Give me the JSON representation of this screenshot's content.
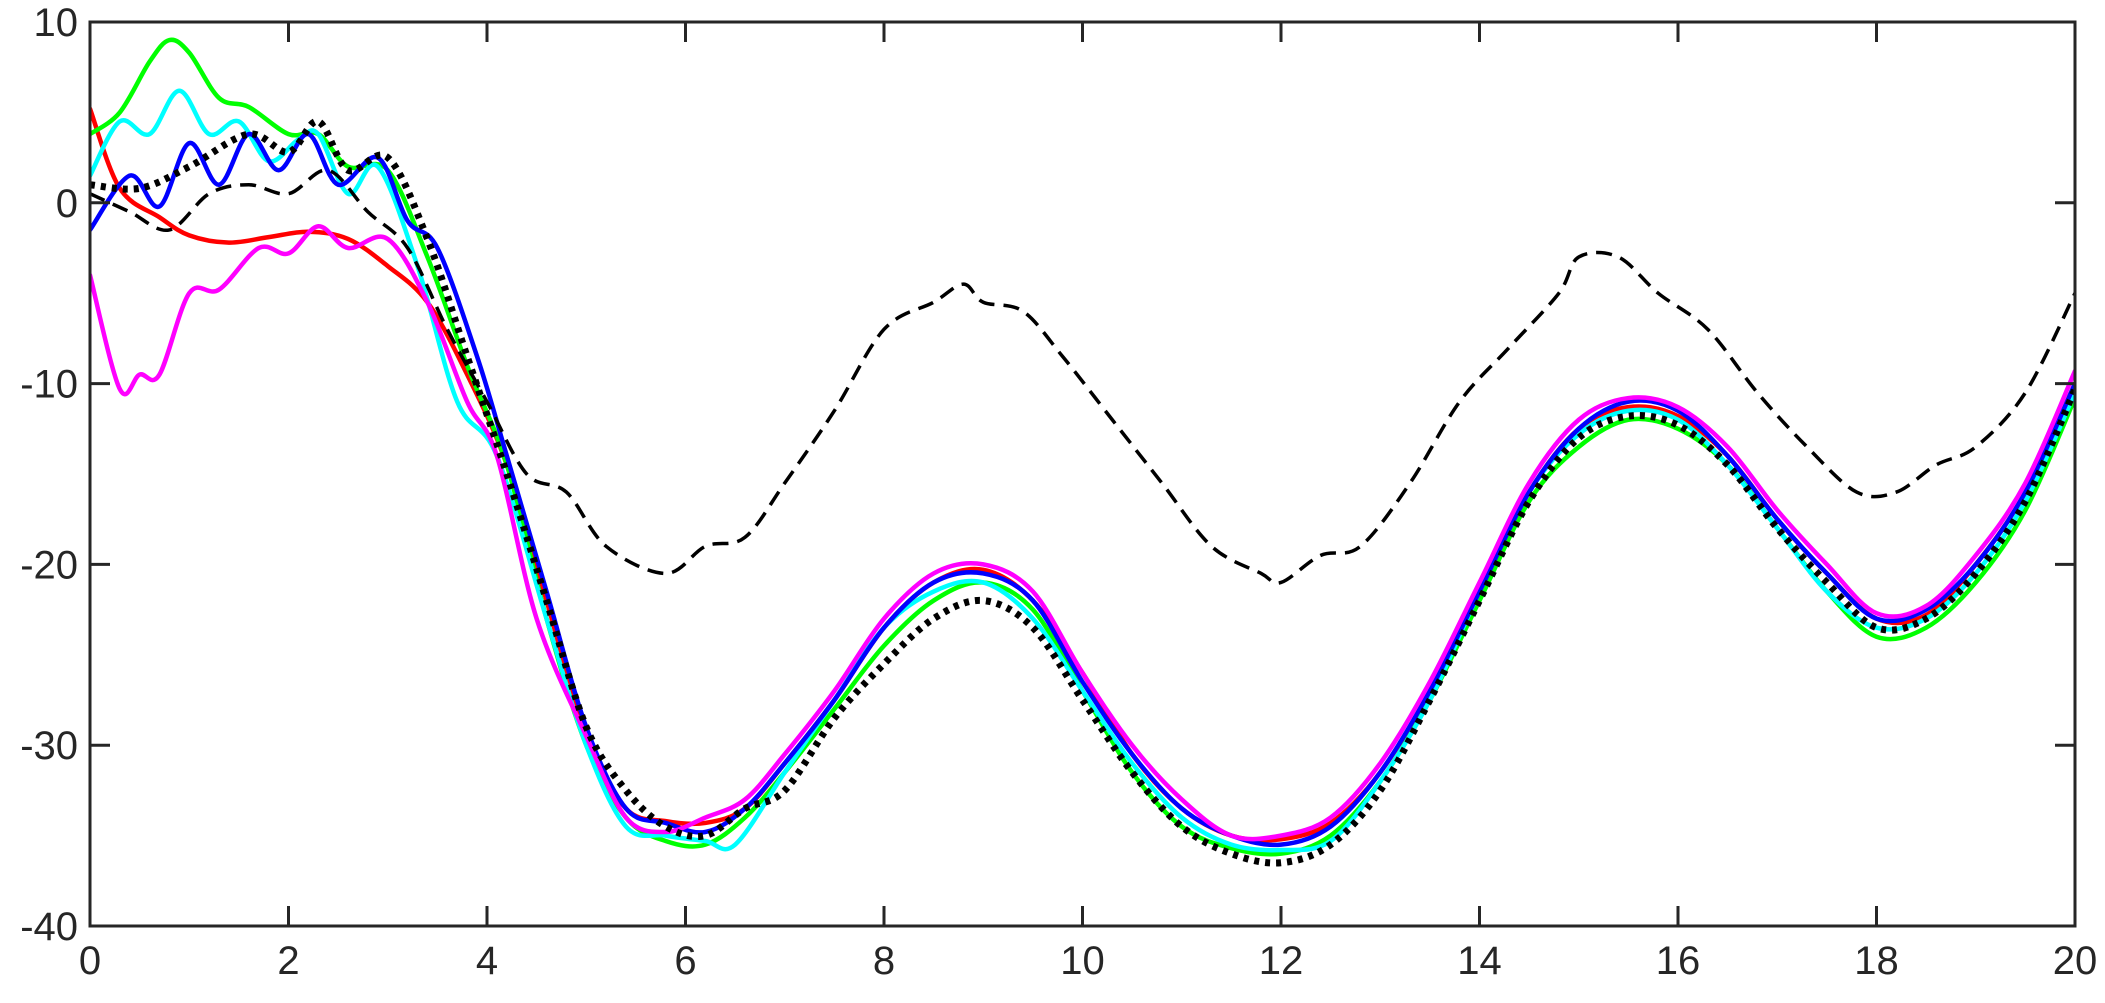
{
  "chart_data": {
    "type": "line",
    "title": "",
    "xlabel": "",
    "ylabel": "",
    "xlim": [
      0,
      20
    ],
    "ylim": [
      -40,
      10
    ],
    "xticks": [
      0,
      2,
      4,
      6,
      8,
      10,
      12,
      14,
      16,
      18,
      20
    ],
    "yticks": [
      -40,
      -30,
      -20,
      -10,
      0,
      10
    ],
    "xtick_labels": [
      "0",
      "2",
      "4",
      "6",
      "8",
      "10",
      "12",
      "14",
      "16",
      "18",
      "20"
    ],
    "ytick_labels": [
      "-40",
      "-30",
      "-20",
      "-10",
      "0",
      "10"
    ],
    "grid": false,
    "legend": false,
    "series": [
      {
        "color": "#ff0000",
        "style": "solid",
        "x": [
          0,
          0.3,
          0.7,
          1.0,
          1.4,
          1.8,
          2.2,
          2.6,
          3.0,
          3.4,
          3.8,
          4.2,
          4.6,
          5.0,
          5.4,
          5.8,
          6.2,
          6.6,
          7.0,
          7.5,
          8.0,
          8.5,
          9.0,
          9.5,
          10.0,
          10.5,
          11.0,
          11.5,
          12.0,
          12.5,
          13.0,
          13.5,
          14.0,
          14.5,
          15.0,
          15.5,
          16.0,
          16.5,
          17.0,
          17.5,
          18.0,
          18.5,
          19.0,
          19.5,
          20.0
        ],
        "y": [
          5.2,
          0.8,
          -0.8,
          -1.8,
          -2.2,
          -1.9,
          -1.6,
          -2.0,
          -3.5,
          -5.5,
          -9.5,
          -14.5,
          -22.0,
          -29.5,
          -33.5,
          -34.2,
          -34.3,
          -33.5,
          -31.0,
          -27.5,
          -23.5,
          -21.0,
          -20.3,
          -22.0,
          -26.0,
          -30.5,
          -33.5,
          -35.0,
          -35.2,
          -34.3,
          -31.5,
          -27.0,
          -21.5,
          -16.0,
          -12.5,
          -11.3,
          -11.8,
          -14.0,
          -17.5,
          -20.5,
          -23.0,
          -22.8,
          -20.0,
          -16.0,
          -10.0
        ]
      },
      {
        "color": "#00ff00",
        "style": "solid",
        "x": [
          0,
          0.3,
          0.6,
          0.8,
          1.0,
          1.3,
          1.6,
          2.0,
          2.3,
          2.6,
          3.0,
          3.4,
          3.8,
          4.2,
          4.6,
          5.0,
          5.4,
          5.8,
          6.2,
          6.6,
          7.0,
          7.5,
          8.0,
          8.5,
          9.0,
          9.5,
          10.0,
          10.5,
          11.0,
          11.5,
          12.0,
          12.5,
          13.0,
          13.5,
          14.0,
          14.5,
          15.0,
          15.5,
          16.0,
          16.5,
          17.0,
          17.5,
          18.0,
          18.5,
          19.0,
          19.5,
          20.0
        ],
        "y": [
          3.8,
          5.0,
          7.8,
          9.0,
          8.3,
          5.8,
          5.3,
          3.8,
          3.8,
          2.0,
          1.8,
          -3.0,
          -9.0,
          -14.5,
          -23.0,
          -30.0,
          -34.0,
          -35.3,
          -35.5,
          -34.0,
          -31.5,
          -28.0,
          -24.5,
          -22.0,
          -21.0,
          -22.5,
          -27.0,
          -31.5,
          -34.5,
          -35.7,
          -36.0,
          -35.0,
          -32.0,
          -27.5,
          -22.0,
          -16.5,
          -13.5,
          -12.0,
          -12.5,
          -14.5,
          -18.0,
          -21.5,
          -24.0,
          -23.5,
          -21.0,
          -17.0,
          -10.8
        ]
      },
      {
        "color": "#00ffff",
        "style": "solid",
        "x": [
          0,
          0.3,
          0.6,
          0.9,
          1.2,
          1.5,
          1.8,
          2.1,
          2.3,
          2.6,
          2.9,
          3.3,
          3.7,
          4.1,
          4.6,
          5.0,
          5.4,
          5.8,
          6.2,
          6.5,
          7.0,
          7.5,
          8.0,
          8.5,
          9.0,
          9.5,
          10.0,
          10.5,
          11.0,
          11.5,
          12.0,
          12.5,
          13.0,
          13.5,
          14.0,
          14.5,
          15.0,
          15.5,
          16.0,
          16.5,
          17.0,
          17.5,
          18.0,
          18.5,
          19.0,
          19.5,
          20.0
        ],
        "y": [
          1.5,
          4.5,
          3.8,
          6.2,
          3.8,
          4.5,
          2.3,
          3.5,
          3.8,
          0.5,
          2.0,
          -3.5,
          -11.0,
          -14.0,
          -23.0,
          -30.0,
          -34.5,
          -35.0,
          -35.3,
          -35.5,
          -31.5,
          -27.5,
          -23.5,
          -21.5,
          -21.0,
          -23.0,
          -27.0,
          -31.0,
          -34.0,
          -35.5,
          -35.8,
          -35.3,
          -32.0,
          -27.5,
          -21.5,
          -16.0,
          -12.8,
          -11.5,
          -12.0,
          -14.5,
          -18.0,
          -21.5,
          -23.5,
          -23.0,
          -20.5,
          -16.5,
          -10.5
        ]
      },
      {
        "color": "#0000ff",
        "style": "solid",
        "x": [
          0,
          0.4,
          0.7,
          1.0,
          1.3,
          1.6,
          1.9,
          2.2,
          2.5,
          2.9,
          3.2,
          3.5,
          3.9,
          4.2,
          4.6,
          5.0,
          5.4,
          5.8,
          6.2,
          6.6,
          7.0,
          7.5,
          8.0,
          8.5,
          9.0,
          9.5,
          10.0,
          10.5,
          11.0,
          11.5,
          12.0,
          12.5,
          13.0,
          13.5,
          14.0,
          14.5,
          15.0,
          15.5,
          16.0,
          16.5,
          17.0,
          17.5,
          18.0,
          18.5,
          19.0,
          19.5,
          20.0
        ],
        "y": [
          -1.5,
          1.5,
          -0.2,
          3.3,
          1.0,
          3.8,
          1.8,
          3.8,
          1.0,
          2.5,
          -1.0,
          -2.5,
          -8.5,
          -14.0,
          -21.5,
          -29.0,
          -33.5,
          -34.3,
          -34.8,
          -33.5,
          -31.0,
          -27.5,
          -23.5,
          -21.0,
          -20.5,
          -22.0,
          -26.5,
          -30.5,
          -33.5,
          -35.0,
          -35.5,
          -34.5,
          -31.5,
          -27.0,
          -21.5,
          -16.0,
          -12.5,
          -11.0,
          -11.5,
          -14.0,
          -17.5,
          -20.5,
          -23.0,
          -22.5,
          -20.0,
          -16.0,
          -10.0
        ]
      },
      {
        "color": "#ff00ff",
        "style": "solid",
        "x": [
          0,
          0.3,
          0.5,
          0.7,
          1.0,
          1.3,
          1.7,
          2.0,
          2.3,
          2.6,
          3.0,
          3.4,
          3.8,
          4.1,
          4.5,
          5.0,
          5.4,
          5.8,
          6.2,
          6.6,
          7.0,
          7.5,
          8.0,
          8.5,
          9.0,
          9.5,
          10.0,
          10.5,
          11.0,
          11.5,
          12.0,
          12.5,
          13.0,
          13.5,
          14.0,
          14.5,
          15.0,
          15.5,
          16.0,
          16.5,
          17.0,
          17.5,
          18.0,
          18.5,
          19.0,
          19.5,
          20.0
        ],
        "y": [
          -4.0,
          -10.3,
          -9.5,
          -9.5,
          -5.0,
          -4.8,
          -2.5,
          -2.8,
          -1.3,
          -2.5,
          -2.0,
          -5.5,
          -11.0,
          -14.0,
          -23.0,
          -29.5,
          -34.0,
          -34.8,
          -34.0,
          -33.0,
          -30.5,
          -27.0,
          -23.0,
          -20.5,
          -20.0,
          -21.5,
          -26.0,
          -30.0,
          -33.0,
          -35.0,
          -35.0,
          -34.0,
          -31.0,
          -26.5,
          -21.0,
          -15.5,
          -12.0,
          -10.8,
          -11.3,
          -13.5,
          -17.0,
          -20.0,
          -22.7,
          -22.3,
          -19.5,
          -15.5,
          -9.3
        ]
      },
      {
        "color": "#000000",
        "style": "dashed",
        "x": [
          0,
          0.4,
          0.8,
          1.2,
          1.6,
          2.0,
          2.4,
          2.8,
          3.2,
          3.6,
          4.0,
          4.4,
          4.8,
          5.2,
          5.8,
          6.2,
          6.6,
          7.0,
          7.5,
          8.0,
          8.5,
          8.8,
          9.0,
          9.4,
          9.8,
          10.3,
          10.8,
          11.3,
          11.8,
          12.0,
          12.4,
          12.8,
          13.3,
          13.8,
          14.3,
          14.8,
          15.0,
          15.4,
          15.8,
          16.3,
          16.8,
          17.3,
          17.8,
          18.2,
          18.6,
          19.0,
          19.5,
          20.0
        ],
        "y": [
          0.5,
          -0.5,
          -1.5,
          0.5,
          1.0,
          0.5,
          1.8,
          -0.5,
          -2.5,
          -7.0,
          -11.0,
          -15.0,
          -16.0,
          -19.0,
          -20.5,
          -19.0,
          -18.5,
          -15.5,
          -11.5,
          -7.0,
          -5.5,
          -4.5,
          -5.5,
          -6.0,
          -8.5,
          -12.0,
          -15.5,
          -19.0,
          -20.5,
          -21.0,
          -19.5,
          -19.0,
          -15.5,
          -11.0,
          -8.0,
          -5.0,
          -3.0,
          -3.0,
          -5.0,
          -7.0,
          -10.5,
          -13.5,
          -16.0,
          -16.0,
          -14.5,
          -13.5,
          -10.5,
          -5.0
        ]
      },
      {
        "color": "#000000",
        "style": "dotted",
        "x": [
          0,
          0.5,
          1.0,
          1.6,
          2.0,
          2.3,
          2.6,
          3.0,
          3.4,
          3.8,
          4.2,
          4.6,
          5.0,
          5.4,
          5.8,
          6.2,
          6.6,
          7.0,
          7.5,
          8.0,
          8.5,
          9.0,
          9.5,
          10.0,
          10.5,
          11.0,
          11.5,
          12.0,
          12.5,
          13.0,
          13.5,
          14.0,
          14.5,
          15.0,
          15.5,
          16.0,
          16.5,
          17.0,
          17.5,
          18.0,
          18.5,
          19.0,
          19.5,
          20.0
        ],
        "y": [
          1.0,
          0.8,
          2.0,
          3.8,
          2.8,
          4.5,
          1.8,
          2.5,
          -2.0,
          -8.5,
          -15.0,
          -22.0,
          -29.0,
          -32.5,
          -34.5,
          -35.0,
          -33.5,
          -32.5,
          -28.5,
          -25.5,
          -23.0,
          -22.0,
          -23.5,
          -27.5,
          -31.5,
          -34.5,
          -36.0,
          -36.5,
          -35.5,
          -32.5,
          -27.5,
          -22.0,
          -16.5,
          -13.0,
          -11.8,
          -12.3,
          -14.5,
          -18.0,
          -21.0,
          -23.5,
          -23.0,
          -20.5,
          -16.5,
          -10.3
        ]
      }
    ]
  }
}
